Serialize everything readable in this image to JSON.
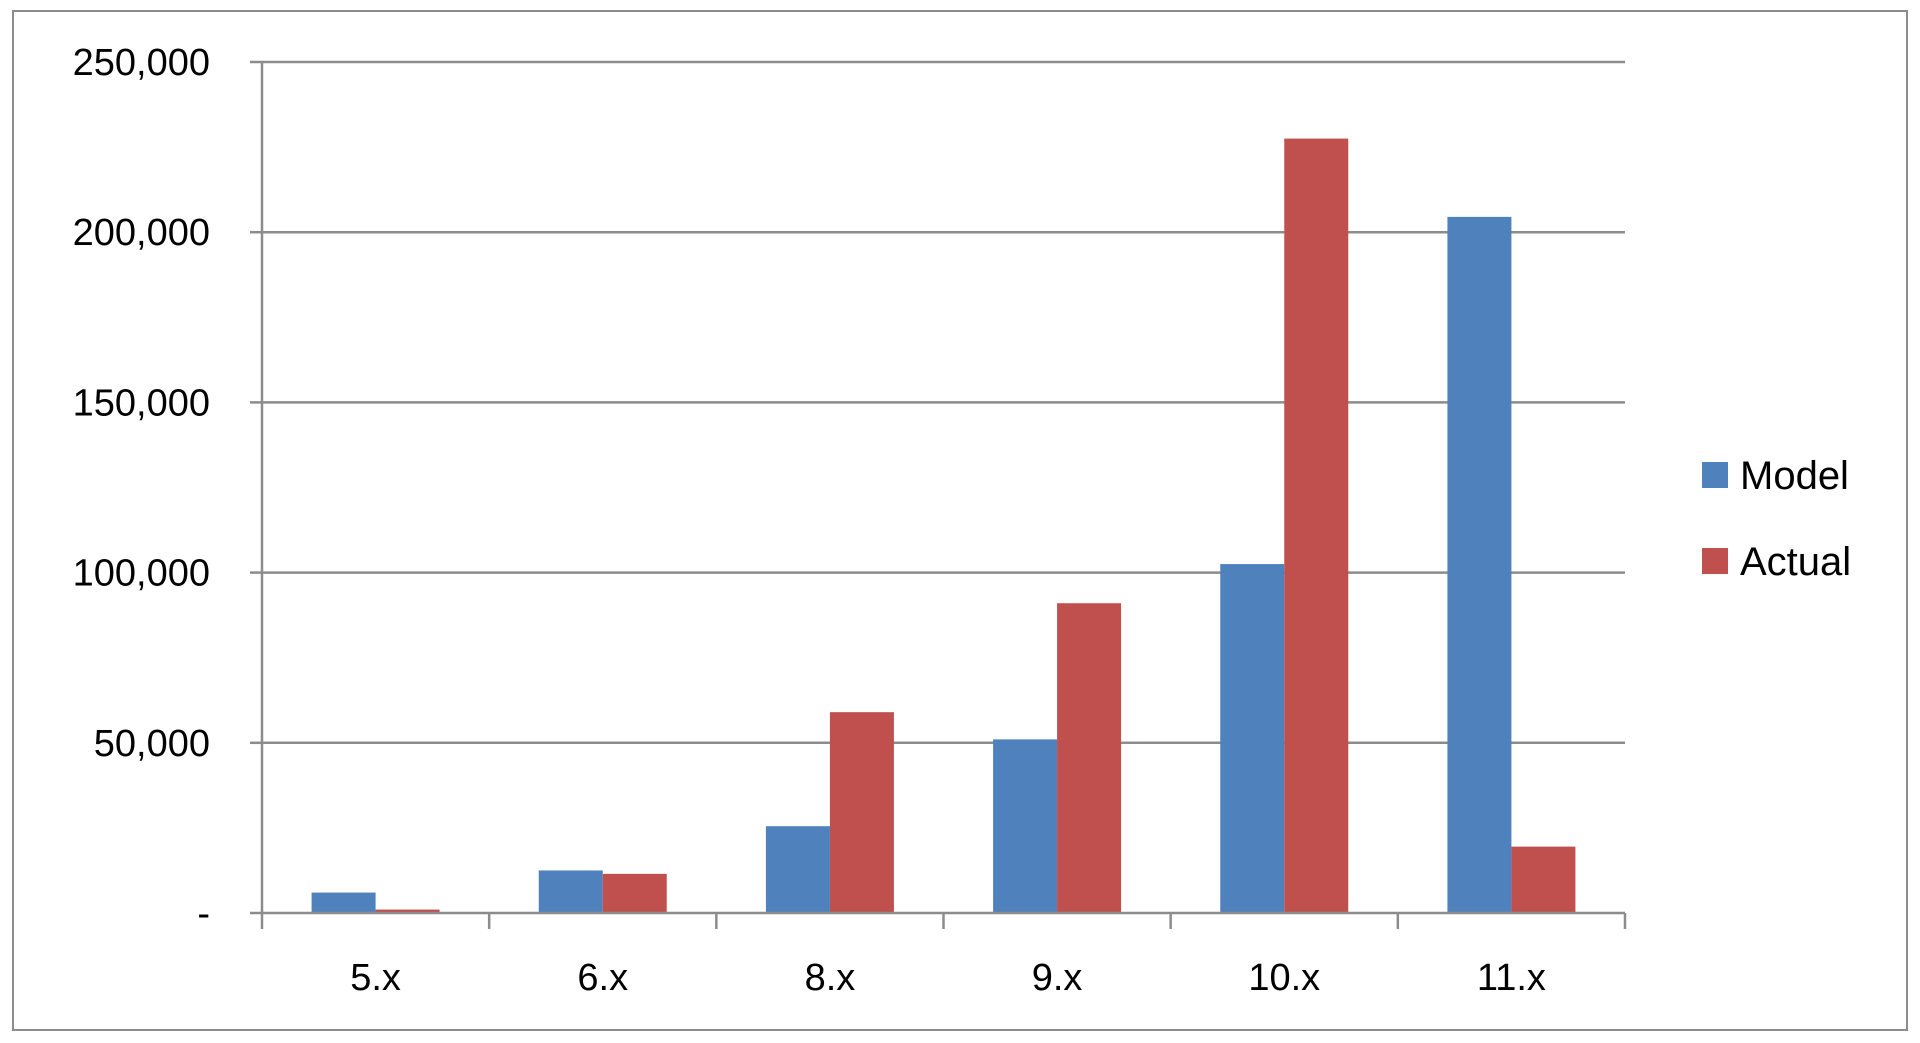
{
  "chart_data": {
    "type": "bar",
    "title": "",
    "xlabel": "",
    "ylabel": "",
    "categories": [
      "5.x",
      "6.x",
      "8.x",
      "9.x",
      "10.x",
      "11.x"
    ],
    "series": [
      {
        "name": "Model",
        "color": "#4F81BD",
        "values": [
          6000,
          12500,
          25500,
          51000,
          102500,
          204500
        ]
      },
      {
        "name": "Actual",
        "color": "#C0504D",
        "values": [
          1000,
          11500,
          59000,
          91000,
          227500,
          19500
        ]
      }
    ],
    "ylim": [
      0,
      250000
    ],
    "yticks": [
      0,
      50000,
      100000,
      150000,
      200000,
      250000
    ],
    "ytick_labels": [
      "-",
      "50,000",
      "100,000",
      "150,000",
      "200,000",
      "250,000"
    ],
    "grid": true,
    "legend_position": "right"
  }
}
